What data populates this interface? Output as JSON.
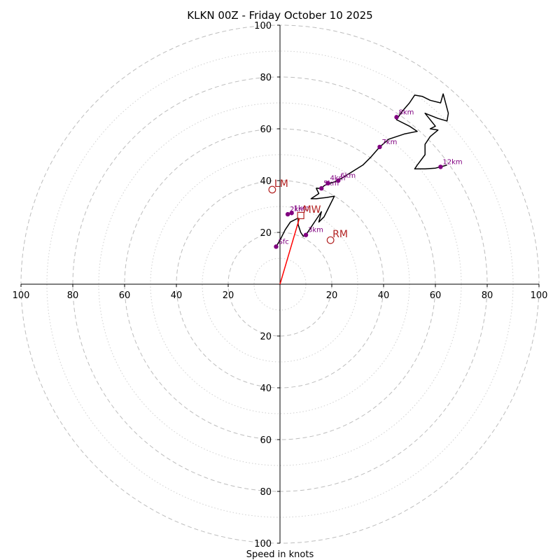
{
  "chart_data": {
    "type": "scatter",
    "title": "KLKN 00Z - Friday October 10 2025",
    "xlabel": "Speed in knots",
    "ylabel": "",
    "xlim": [
      -100,
      100
    ],
    "ylim": [
      -100,
      100
    ],
    "tick_values": [
      100,
      80,
      60,
      40,
      20
    ],
    "ring_major": [
      20,
      40,
      60,
      80,
      100
    ],
    "ring_minor": [
      10,
      30,
      50,
      70,
      90
    ],
    "hodograph_trace": {
      "name": "wind profile",
      "points": [
        [
          -1.5,
          14.5
        ],
        [
          0,
          17
        ],
        [
          2,
          21
        ],
        [
          4,
          24
        ],
        [
          7,
          25.5
        ],
        [
          7,
          23
        ],
        [
          8,
          20
        ],
        [
          9,
          18.5
        ],
        [
          10,
          19
        ],
        [
          12,
          22
        ],
        [
          14,
          25
        ],
        [
          16,
          28
        ],
        [
          15,
          24
        ],
        [
          17,
          26
        ],
        [
          19,
          30
        ],
        [
          21,
          34
        ],
        [
          18,
          33.5
        ],
        [
          14,
          33
        ],
        [
          12,
          33
        ],
        [
          15,
          35
        ],
        [
          14,
          37
        ],
        [
          16,
          37
        ],
        [
          17,
          38
        ],
        [
          18,
          38.5
        ],
        [
          21,
          39.5
        ],
        [
          24,
          41
        ],
        [
          28,
          43.5
        ],
        [
          32,
          46
        ],
        [
          35,
          49
        ],
        [
          38.5,
          53
        ],
        [
          42,
          56
        ],
        [
          48,
          58
        ],
        [
          53,
          59
        ],
        [
          50,
          61
        ],
        [
          45,
          63.5
        ],
        [
          47,
          66.5
        ],
        [
          50,
          70
        ],
        [
          52,
          73
        ],
        [
          55,
          72.5
        ],
        [
          58,
          71
        ],
        [
          62,
          70
        ],
        [
          63,
          73.5
        ],
        [
          65,
          66
        ],
        [
          64.5,
          63
        ],
        [
          61,
          64
        ],
        [
          56,
          66
        ],
        [
          60,
          61
        ],
        [
          58,
          60
        ],
        [
          61,
          59.5
        ],
        [
          58,
          57
        ],
        [
          56,
          54
        ],
        [
          56,
          50
        ],
        [
          53,
          46
        ],
        [
          52,
          44.5
        ],
        [
          56,
          44.5
        ],
        [
          60,
          44.8
        ],
        [
          62,
          45.3
        ],
        [
          64.5,
          46
        ]
      ]
    },
    "height_markers": [
      {
        "label": "Sfc",
        "u": -1.5,
        "v": 14.5
      },
      {
        "label": "1km",
        "u": 4.5,
        "v": 27.5
      },
      {
        "label": "2km",
        "u": 3,
        "v": 27
      },
      {
        "label": "3km",
        "u": 10,
        "v": 19
      },
      {
        "label": "4km",
        "u": 18.5,
        "v": 39
      },
      {
        "label": "5km",
        "u": 16,
        "v": 37
      },
      {
        "label": "6km",
        "u": 22.5,
        "v": 40
      },
      {
        "label": "7km",
        "u": 38.5,
        "v": 53
      },
      {
        "label": "8km",
        "u": 45,
        "v": 64.5
      },
      {
        "label": "12km",
        "u": 62,
        "v": 45.3
      }
    ],
    "storm_motions": [
      {
        "label": "MW",
        "u": 8,
        "v": 26.5,
        "marker": "square"
      },
      {
        "label": "RM",
        "u": 19.5,
        "v": 17,
        "marker": "circle"
      },
      {
        "label": "LM",
        "u": -3,
        "v": 36.5,
        "marker": "circle"
      }
    ],
    "mean_wind_vector": {
      "u": 7.5,
      "v": 25.5
    },
    "colors": {
      "trace": "#000000",
      "markers": "#800080",
      "storm": "#b22222",
      "vector": "#ff0000"
    }
  }
}
